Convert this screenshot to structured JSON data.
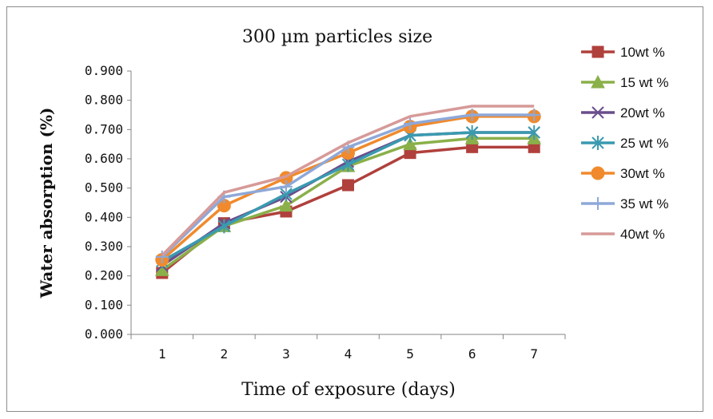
{
  "chart_data": {
    "type": "line",
    "title": "300 µm particles size",
    "xlabel": "Time of exposure (days)",
    "ylabel": "Water absorption (%)",
    "categories": [
      "1",
      "2",
      "3",
      "4",
      "5",
      "6",
      "7"
    ],
    "y_ticks": [
      "0.000",
      "0.100",
      "0.200",
      "0.300",
      "0.400",
      "0.500",
      "0.600",
      "0.700",
      "0.800",
      "0.900"
    ],
    "ylim": [
      0,
      0.9
    ],
    "grid": false,
    "legend_position": "right",
    "series": [
      {
        "name": "10wt %",
        "color": "#b0403c",
        "marker": "square",
        "values": [
          0.21,
          0.38,
          0.42,
          0.51,
          0.62,
          0.64,
          0.64
        ]
      },
      {
        "name": "15 wt %",
        "color": "#8ab04a",
        "marker": "triangle",
        "values": [
          0.22,
          0.37,
          0.44,
          0.575,
          0.65,
          0.67,
          0.67
        ]
      },
      {
        "name": "20wt %",
        "color": "#6a4d8c",
        "marker": "x",
        "values": [
          0.235,
          0.38,
          0.47,
          0.59,
          0.68,
          0.69,
          0.69
        ]
      },
      {
        "name": "25 wt %",
        "color": "#3a9ab0",
        "marker": "asterisk",
        "values": [
          0.25,
          0.37,
          0.48,
          0.58,
          0.68,
          0.69,
          0.69
        ]
      },
      {
        "name": "30wt %",
        "color": "#f08a2c",
        "marker": "circle",
        "values": [
          0.255,
          0.44,
          0.535,
          0.62,
          0.71,
          0.745,
          0.745
        ]
      },
      {
        "name": "35 wt %",
        "color": "#8ea8d8",
        "marker": "plus",
        "values": [
          0.265,
          0.47,
          0.505,
          0.64,
          0.72,
          0.75,
          0.75
        ]
      },
      {
        "name": "40wt %",
        "color": "#d69a98",
        "marker": "none",
        "values": [
          0.27,
          0.485,
          0.54,
          0.655,
          0.745,
          0.78,
          0.78
        ]
      }
    ]
  }
}
